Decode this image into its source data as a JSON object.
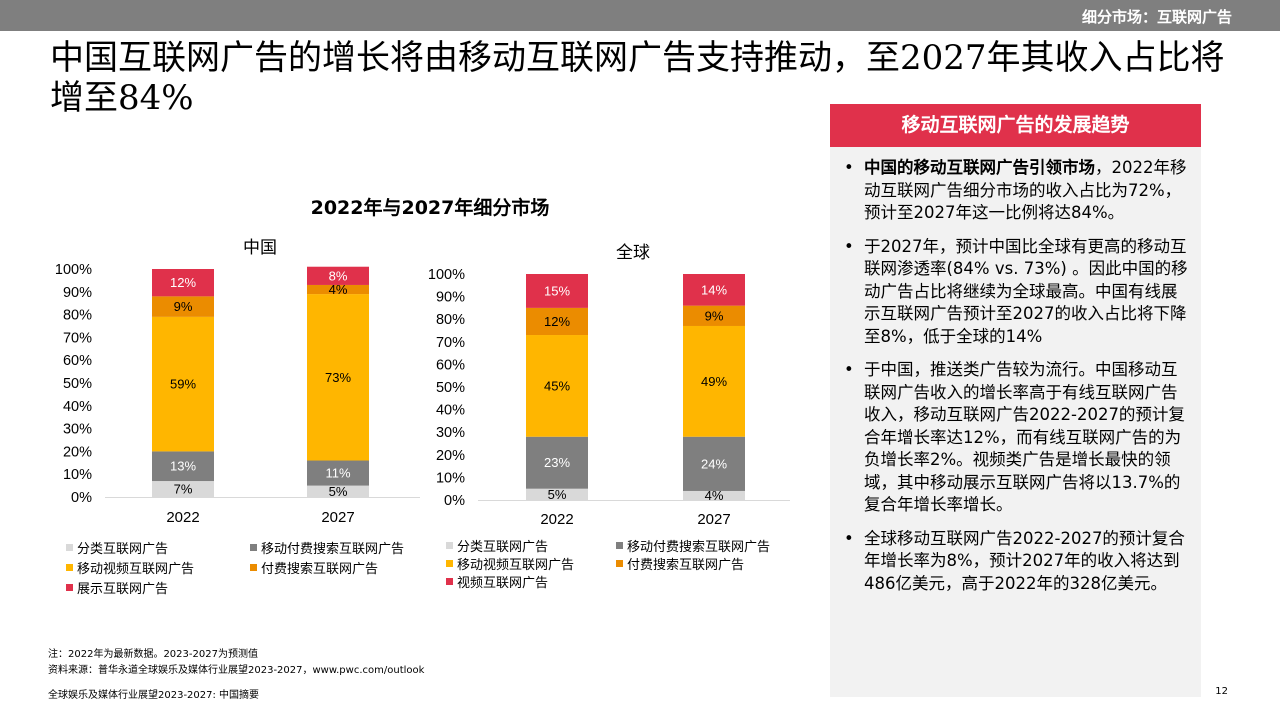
{
  "header": {
    "section": "细分市场：互联网广告"
  },
  "title": "中国互联网广告的增长将由移动互联网广告支持推动，至2027年其收入占比将增至84%",
  "chart_data": {
    "type": "bar",
    "stacked": true,
    "title": "2022年与2027年细分市场",
    "y_ticks": [
      "100%",
      "90%",
      "80%",
      "70%",
      "60%",
      "50%",
      "40%",
      "30%",
      "20%",
      "10%",
      "0%"
    ],
    "ylim": [
      0,
      100
    ],
    "charts": [
      {
        "title": "中国",
        "categories": [
          "2022",
          "2027"
        ],
        "series": [
          {
            "name": "分类互联网广告",
            "color": "#d9d9d9",
            "values": [
              7,
              5
            ],
            "labels": [
              "7%",
              "5%"
            ]
          },
          {
            "name": "移动付费搜索互联网广告",
            "color": "#7f7f7f",
            "values": [
              13,
              11
            ],
            "labels": [
              "13%",
              "11%"
            ]
          },
          {
            "name": "移动视频互联网广告",
            "color": "#ffb600",
            "values": [
              59,
              73
            ],
            "labels": [
              "59%",
              "73%"
            ]
          },
          {
            "name": "付费搜索互联网广告",
            "color": "#eb8c00",
            "values": [
              9,
              4
            ],
            "labels": [
              "9%",
              "4%"
            ]
          },
          {
            "name": "展示互联网广告",
            "color": "#e0314b",
            "values": [
              12,
              8
            ],
            "labels": [
              "12%",
              "8%"
            ]
          }
        ]
      },
      {
        "title": "全球",
        "categories": [
          "2022",
          "2027"
        ],
        "series": [
          {
            "name": "分类互联网广告",
            "color": "#d9d9d9",
            "values": [
              5,
              4
            ],
            "labels": [
              "5%",
              "4%"
            ]
          },
          {
            "name": "移动付费搜索互联网广告",
            "color": "#7f7f7f",
            "values": [
              23,
              24
            ],
            "labels": [
              "23%",
              "24%"
            ]
          },
          {
            "name": "移动视频互联网广告",
            "color": "#ffb600",
            "values": [
              45,
              49
            ],
            "labels": [
              "45%",
              "49%"
            ]
          },
          {
            "name": "付费搜索互联网广告",
            "color": "#eb8c00",
            "values": [
              12,
              9
            ],
            "labels": [
              "12%",
              "9%"
            ]
          },
          {
            "name": "视频互联网广告",
            "color": "#e0314b",
            "values": [
              15,
              14
            ],
            "labels": [
              "15%",
              "14%"
            ]
          }
        ]
      }
    ]
  },
  "footnotes": {
    "note": "注：2022年为最新数据。2023-2027为预测值",
    "source": "资料来源：普华永道全球娱乐及媒体行业展望2023-2027，www.pwc.com/outlook",
    "footer": "全球娱乐及媒体行业展望2023-2027: 中国摘要"
  },
  "page_number": "12",
  "sidebar": {
    "header": "移动互联网广告的发展趋势",
    "bullet_symbol": "•",
    "bullets": [
      {
        "bold": "中国的移动互联网广告引领市场",
        "text": "，2022年移动互联网广告细分市场的收入占比为72%，预计至2027年这一比例将达84%。"
      },
      {
        "bold": "",
        "text": "于2027年，预计中国比全球有更高的移动互联网渗透率(84% vs. 73%) 。因此中国的移动广告占比将继续为全球最高。中国有线展示互联网广告预计至2027的收入占比将下降至8%，低于全球的14%"
      },
      {
        "bold": "",
        "text": "于中国，推送类广告较为流行。中国移动互联网广告收入的增长率高于有线互联网广告收入，移动互联网广告2022-2027的预计复合年增长率达12%，而有线互联网广告的为负增长率2%。视频类广告是增长最快的领域，其中移动展示互联网广告将以13.7%的复合年增长率增长。"
      },
      {
        "bold": "",
        "text": "全球移动互联网广告2022-2027的预计复合年增长率为8%，预计2027年的收入将达到486亿美元，高于2022年的328亿美元。"
      }
    ]
  }
}
